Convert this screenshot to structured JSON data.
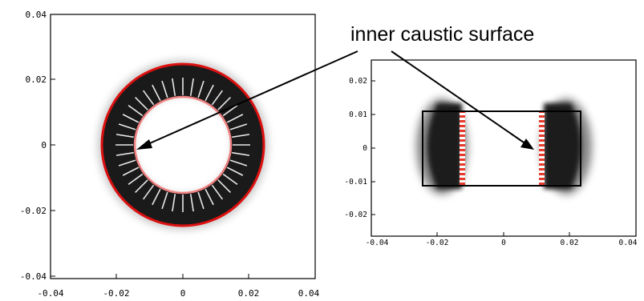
{
  "annotation": "inner caustic surface",
  "left_plot": {
    "x_ticks": [
      "-0.04",
      "-0.02",
      "0",
      "0.02",
      "0.04"
    ],
    "y_ticks": [
      "0.04",
      "0.02",
      "0",
      "-0.02",
      "-0.04"
    ]
  },
  "right_plot": {
    "x_ticks": [
      "-0.04",
      "-0.02",
      "0",
      "0.02",
      "0.04"
    ],
    "y_ticks": [
      "0.02",
      "0.01",
      "0",
      "-0.01",
      "-0.02"
    ]
  },
  "colors": {
    "outer_ring": "#dd1010",
    "inner_ring": "#f08080",
    "shadow": "#1a1a1a",
    "caustic_stripe": "#e63a2a"
  }
}
